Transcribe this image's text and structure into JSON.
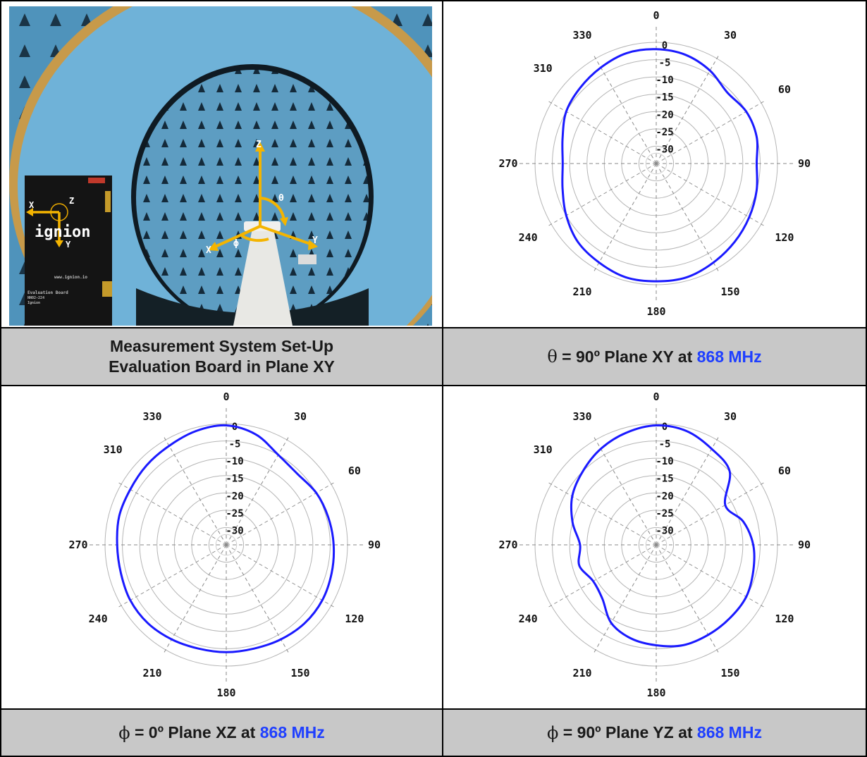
{
  "captions": {
    "setup_line1": "Measurement System Set-Up",
    "setup_line2": "Evaluation Board in Plane XY",
    "xy": {
      "symbol": "θ",
      "text": " = 90º Plane XY at ",
      "freq": "868 MHz"
    },
    "xz": {
      "symbol": "ϕ",
      "text": " = 0º Plane XZ at ",
      "freq": "868 MHz"
    },
    "yz": {
      "symbol": "ϕ",
      "text": " = 90º Plane YZ at ",
      "freq": "868 MHz"
    }
  },
  "photo": {
    "axis_labels": [
      "Z",
      "θ",
      "X",
      "ϕ",
      "Y"
    ],
    "board_axis_labels": [
      "X",
      "Z",
      "Y"
    ],
    "board_brand": "ignion",
    "board_url": "www.ignion.io",
    "board_text": "Evaluation Board",
    "board_code": "NN02-224",
    "board_company": "Ignion",
    "colors": {
      "foam": "#4b8fb4",
      "axes": "#f4b400",
      "board": "#141414"
    }
  },
  "chart_data": [
    {
      "type": "polar",
      "title": "",
      "angle_labels": [
        "0",
        "30",
        "60",
        "90",
        "120",
        "150",
        "180",
        "210",
        "240",
        "270",
        "310",
        "330"
      ],
      "radial_ticks": [
        "0",
        "-5",
        "-10",
        "-15",
        "-20",
        "-25",
        "-30"
      ],
      "rlim": [
        -35,
        0
      ],
      "series_color": "#1a1aff",
      "angles": [
        0,
        15,
        30,
        45,
        60,
        75,
        90,
        105,
        120,
        135,
        150,
        165,
        180,
        195,
        210,
        225,
        240,
        255,
        270,
        285,
        300,
        315,
        330,
        345
      ],
      "values": [
        -2,
        -2.5,
        -4,
        -6,
        -5,
        -5,
        -6,
        -5,
        -4,
        -3,
        -2,
        -1,
        -1,
        -1,
        -2,
        -3,
        -5,
        -7,
        -8,
        -7,
        -5,
        -4,
        -3,
        -2
      ]
    },
    {
      "type": "polar",
      "title": "",
      "angle_labels": [
        "0",
        "30",
        "60",
        "90",
        "120",
        "150",
        "180",
        "210",
        "240",
        "270",
        "310",
        "330"
      ],
      "radial_ticks": [
        "0",
        "-5",
        "-10",
        "-15",
        "-20",
        "-25",
        "-30"
      ],
      "rlim": [
        -35,
        0
      ],
      "series_color": "#1a1aff",
      "angles": [
        0,
        15,
        30,
        45,
        60,
        75,
        90,
        105,
        120,
        135,
        150,
        165,
        180,
        195,
        210,
        225,
        240,
        255,
        270,
        285,
        300,
        315,
        330,
        345
      ],
      "values": [
        -0.5,
        -2,
        -5,
        -6,
        -5,
        -4.5,
        -4,
        -3.5,
        -3,
        -3,
        -3.5,
        -4,
        -4,
        -4,
        -3.5,
        -3,
        -3,
        -3.5,
        -3.5,
        -3,
        -3,
        -2.5,
        -2,
        -1
      ]
    },
    {
      "type": "polar",
      "title": "",
      "angle_labels": [
        "0",
        "30",
        "60",
        "90",
        "120",
        "150",
        "180",
        "210",
        "240",
        "270",
        "310",
        "330"
      ],
      "radial_ticks": [
        "0",
        "-5",
        "-10",
        "-15",
        "-20",
        "-25",
        "-30"
      ],
      "rlim": [
        -35,
        0
      ],
      "series_color": "#1a1aff",
      "angles": [
        0,
        15,
        30,
        45,
        60,
        75,
        90,
        105,
        120,
        135,
        150,
        165,
        180,
        195,
        210,
        225,
        240,
        255,
        270,
        285,
        300,
        315,
        330,
        345
      ],
      "values": [
        -0.5,
        -1,
        -3,
        -5,
        -12,
        -9,
        -7,
        -6,
        -5,
        -5,
        -5,
        -5,
        -6,
        -7,
        -9,
        -13,
        -14,
        -12,
        -13,
        -10,
        -7,
        -5,
        -3,
        -1.5
      ]
    }
  ]
}
